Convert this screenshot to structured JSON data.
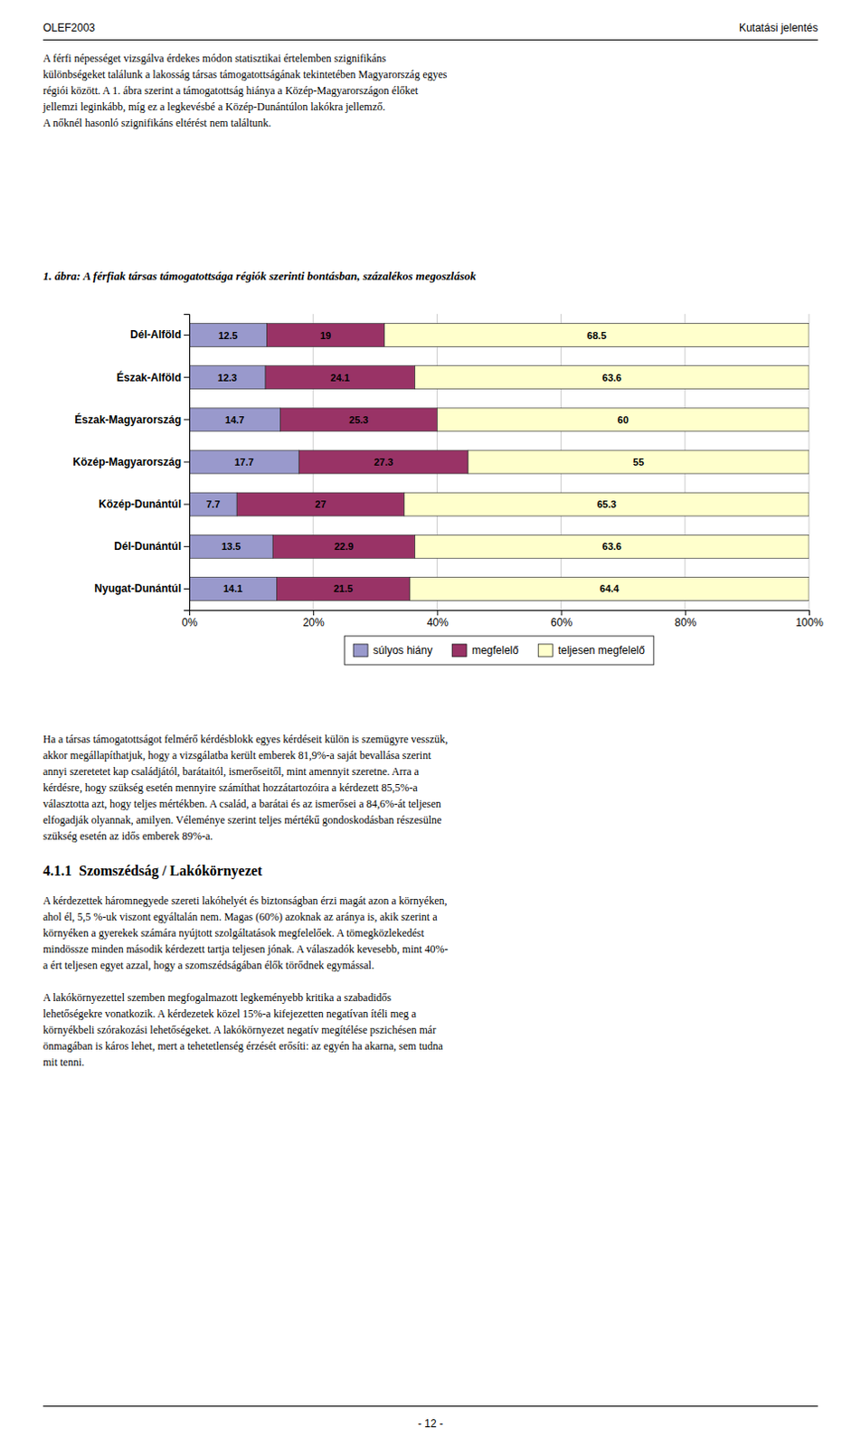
{
  "chart_data": {
    "type": "bar",
    "orientation": "horizontal",
    "stacked": true,
    "title": "1. ábra: A férfiak társas támogatottsága régiók szerinti bontásban, százalékos megoszlások",
    "categories": [
      "Dél-Alföld",
      "Észak-Alföld",
      "Észak-Magyarország",
      "Közép-Magyarország",
      "Közép-Dunántúl",
      "Dél-Dunántúl",
      "Nyugat-Dunántúl"
    ],
    "series": [
      {
        "name": "súlyos hiány",
        "values": [
          12.5,
          12.3,
          14.7,
          17.7,
          7.7,
          13.5,
          14.1
        ],
        "color": "#9999cc"
      },
      {
        "name": "megfelelő",
        "values": [
          19.0,
          24.1,
          25.3,
          27.3,
          27.0,
          22.9,
          21.5
        ],
        "color": "#993366"
      },
      {
        "name": "teljesen megfelelő",
        "values": [
          68.5,
          63.6,
          60.0,
          55.0,
          65.3,
          63.6,
          64.4
        ],
        "color": "#ffffcc"
      }
    ],
    "xlim": [
      0,
      100
    ],
    "xticks": [
      {
        "value": 0,
        "label": "0%"
      },
      {
        "value": 20,
        "label": "20%"
      },
      {
        "value": 40,
        "label": "40%"
      },
      {
        "value": 60,
        "label": "60%"
      },
      {
        "value": 80,
        "label": "80%"
      },
      {
        "value": 100,
        "label": "100%"
      }
    ],
    "grid": true,
    "legend": "bottom",
    "data_labels": true
  },
  "page": {
    "header_left": "OLEF2003",
    "header_right": "Kutatási jelentés",
    "footer": "- 12 -",
    "body_text_above": "A férfi népességet vizsgálva érdekes módon statisztikai értelemben szignifikáns\nkülönbségeket találunk a lakosság társas támogatottságának tekintetében Magyarország egyes\nrégiói között. A 1. ábra szerint a támogatottság hiánya a Közép-Magyarországon élőket\njellemzi leginkább, míg ez a legkevésbé a Közép-Dunántúlon lakókra jellemző.\nA nőknél hasonló szignifikáns eltérést nem találtunk.",
    "body_text_below": "Ha a társas támogatottságot felmérő kérdésblokk egyes kérdéseit külön is szemügyre vesszük,\nakkor megállapíthatjuk, hogy a vizsgálatba került emberek 81,9%-a saját bevallása szerint\nannyi szeretetet kap családjától, barátaitól, ismerőseitől, mint amennyit szeretne. Arra a\nkérdésre, hogy szükség esetén mennyire számíthat hozzátartozóira a kérdezett 85,5%-a\nválasztotta azt, hogy teljes mértékben. A család, a barátai és az ismerősei a 84,6%-át teljesen\nelfogadják olyannak, amilyen. Véleménye szerint teljes mértékű gondoskodásban részesülne\nszükség esetén az idős emberek 89%-a.",
    "section_title": "4.1.1  Szomszédság / Lakókörnyezet",
    "section_text": "A kérdezettek háromnegyede szereti lakóhelyét és biztonságban érzi magát azon a környéken,\nahol él, 5,5 %-uk viszont egyáltalán nem. Magas (60%) azoknak az aránya is, akik szerint a\nkörnyéken a gyerekek számára nyújtott szolgáltatások megfelelőek. A tömegközlekedést\nmindössze minden második kérdezett tartja teljesen jónak. A válaszadók kevesebb, mint 40%-\na ért teljesen egyet azzal, hogy a szomszédságában élők törődnek egymással.\n\nA lakókörnyezettel szemben megfogalmazott legkeményebb kritika a szabadidős\nlehetőségekre vonatkozik. A kérdezetek közel 15%-a kifejezetten negatívan ítéli meg a\nkörnyékbeli szórakozási lehetőségeket. A lakókörnyezet negatív megítélése pszichésen már\nönmagában is káros lehet, mert a tehetetlenség érzését erősíti: az egyén ha akarna, sem tudna\nmit tenni."
  }
}
